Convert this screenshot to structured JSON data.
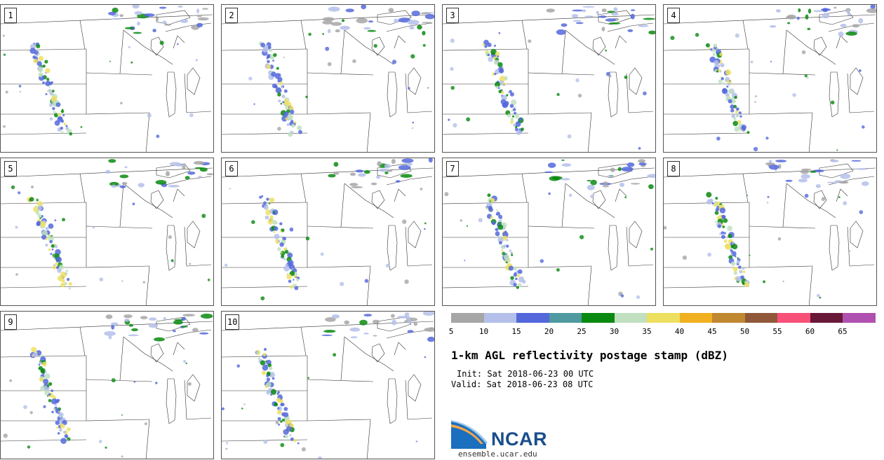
{
  "panels": [
    {
      "label": "1"
    },
    {
      "label": "2"
    },
    {
      "label": "3"
    },
    {
      "label": "4"
    },
    {
      "label": "5"
    },
    {
      "label": "6"
    },
    {
      "label": "7"
    },
    {
      "label": "8"
    },
    {
      "label": "9"
    },
    {
      "label": "10"
    }
  ],
  "colorbar": {
    "ticks": [
      "5",
      "10",
      "15",
      "20",
      "25",
      "30",
      "35",
      "40",
      "45",
      "50",
      "55",
      "60",
      "65"
    ],
    "colors": [
      "#a6a6a6",
      "#b4c0ea",
      "#5468dc",
      "#4e9aa0",
      "#0a8a10",
      "#c0e0c0",
      "#ede060",
      "#f0b020",
      "#c08830",
      "#905838",
      "#f85078",
      "#6a1838",
      "#b050b0"
    ]
  },
  "product": {
    "title": "1-km AGL reflectivity postage stamp (dBZ)",
    "init": "Init: Sat 2018-06-23 00 UTC",
    "valid": "Valid: Sat 2018-06-23 08 UTC"
  },
  "branding": {
    "logo_text": "NCAR",
    "site": "ensemble.ucar.edu"
  }
}
